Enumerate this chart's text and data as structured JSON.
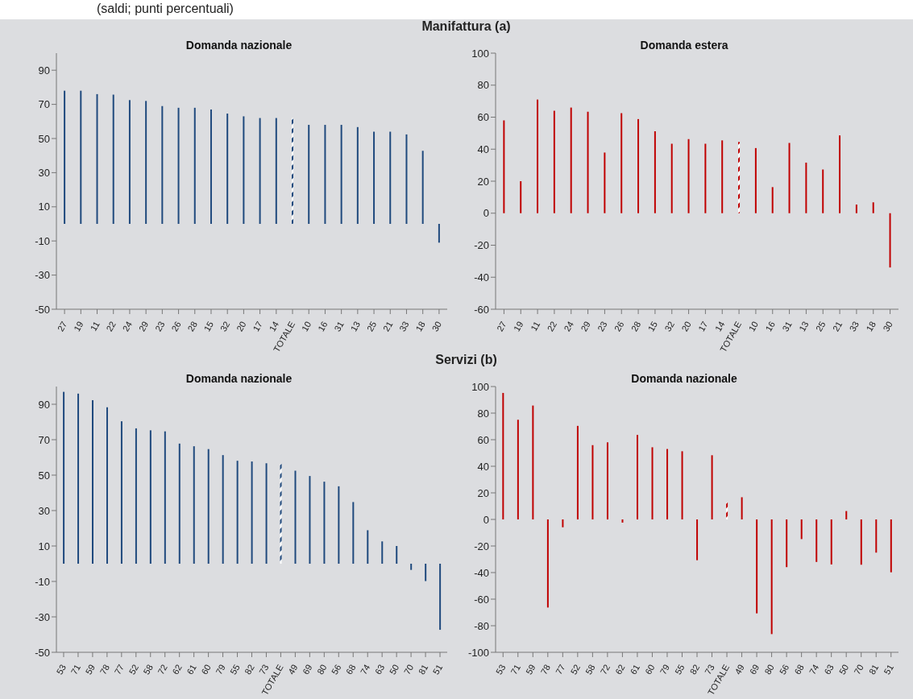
{
  "chart_data": [
    {
      "type": "bar",
      "title": "Domanda nazionale",
      "annotations": [
        "(saldi; punti percentuali)",
        "Manifattura (a)"
      ],
      "categories": [
        "27",
        "19",
        "11",
        "22",
        "24",
        "29",
        "23",
        "26",
        "28",
        "15",
        "32",
        "20",
        "17",
        "14",
        "TOTALE",
        "10",
        "16",
        "31",
        "13",
        "25",
        "21",
        "33",
        "18",
        "30"
      ],
      "values": [
        78,
        78,
        76,
        75.7,
        72.5,
        72,
        69,
        68,
        68,
        67,
        64.6,
        63,
        62,
        62,
        62,
        58,
        58,
        58,
        56.7,
        54,
        54,
        52.4,
        42.8,
        -11
      ],
      "color": "#1f497d",
      "colors": [
        "#1f497d",
        "#1f497d",
        "#1f497d",
        "#1f497d",
        "#1f497d",
        "#1f497d",
        "#1f497d",
        "#1f497d",
        "#1f497d",
        "#1f497d",
        "#1f497d",
        "#1f497d",
        "#1f497d",
        "#1f497d",
        "#ffffff",
        "#1f497d",
        "#1f497d",
        "#1f497d",
        "#1f497d",
        "#1f497d",
        "#1f497d",
        "#1f497d",
        "#1f497d",
        "#1f497d"
      ],
      "ylim": [
        -50,
        100
      ],
      "yticks": [
        -50,
        -30,
        -10,
        10,
        30,
        50,
        70,
        90
      ]
    },
    {
      "type": "bar",
      "title": "Domanda estera",
      "categories": [
        "27",
        "19",
        "11",
        "22",
        "24",
        "29",
        "23",
        "26",
        "28",
        "15",
        "32",
        "20",
        "17",
        "14",
        "TOTALE",
        "10",
        "16",
        "31",
        "13",
        "25",
        "21",
        "33",
        "18",
        "30"
      ],
      "values": [
        58,
        20,
        71,
        64,
        66,
        63.4,
        37.9,
        62.5,
        58.8,
        51.2,
        43.4,
        46.3,
        43.4,
        45.5,
        44.5,
        40.7,
        16.3,
        43.9,
        31.6,
        27.3,
        48.6,
        5.4,
        6.8,
        -33.9
      ],
      "color": "#c00000",
      "colors": [
        "#c00000",
        "#c00000",
        "#c00000",
        "#c00000",
        "#c00000",
        "#c00000",
        "#c00000",
        "#c00000",
        "#c00000",
        "#c00000",
        "#c00000",
        "#c00000",
        "#c00000",
        "#c00000",
        "#ffffff",
        "#c00000",
        "#c00000",
        "#c00000",
        "#c00000",
        "#c00000",
        "#c00000",
        "#c00000",
        "#c00000",
        "#c00000"
      ],
      "ylim": [
        -60,
        100
      ],
      "yticks": [
        -60,
        -40,
        -20,
        0,
        20,
        40,
        60,
        80,
        100
      ]
    },
    {
      "type": "bar",
      "title": "Domanda nazionale",
      "annotations": [
        "Servizi (b)"
      ],
      "categories": [
        "53",
        "71",
        "59",
        "78",
        "77",
        "52",
        "58",
        "72",
        "62",
        "61",
        "60",
        "79",
        "55",
        "82",
        "73",
        "TOTALE",
        "49",
        "69",
        "80",
        "56",
        "68",
        "74",
        "63",
        "50",
        "70",
        "81",
        "51"
      ],
      "values": [
        97,
        96,
        92.3,
        88.3,
        80.4,
        76.4,
        75.3,
        74.7,
        67.8,
        66.3,
        64.7,
        61.3,
        58.1,
        57.7,
        56.7,
        56.3,
        52.5,
        49.5,
        46.3,
        43.7,
        34.8,
        18.9,
        12.6,
        10,
        -3.5,
        -9.8,
        -37.3
      ],
      "color": "#1f497d",
      "colors": [
        "#1f497d",
        "#1f497d",
        "#1f497d",
        "#1f497d",
        "#1f497d",
        "#1f497d",
        "#1f497d",
        "#1f497d",
        "#1f497d",
        "#1f497d",
        "#1f497d",
        "#1f497d",
        "#1f497d",
        "#1f497d",
        "#1f497d",
        "#ffffff",
        "#1f497d",
        "#1f497d",
        "#1f497d",
        "#1f497d",
        "#1f497d",
        "#1f497d",
        "#1f497d",
        "#1f497d",
        "#1f497d",
        "#1f497d",
        "#1f497d"
      ],
      "ylim": [
        -50,
        100
      ],
      "yticks": [
        -50,
        -30,
        -10,
        10,
        30,
        50,
        70,
        90
      ]
    },
    {
      "type": "bar",
      "title": "Domanda nazionale",
      "categories": [
        "53",
        "71",
        "59",
        "78",
        "77",
        "52",
        "58",
        "72",
        "62",
        "61",
        "60",
        "79",
        "55",
        "82",
        "73",
        "TOTALE",
        "49",
        "69",
        "80",
        "56",
        "68",
        "74",
        "63",
        "50",
        "70",
        "81",
        "51"
      ],
      "values": [
        95.2,
        75,
        85.7,
        -66.3,
        -5.9,
        70.4,
        55.9,
        58,
        -2.4,
        63.7,
        54.3,
        53,
        51.3,
        -30.7,
        48.3,
        12.8,
        16.7,
        -70.7,
        -86.3,
        -35.9,
        -14.8,
        -32,
        -33.9,
        6.3,
        -34.1,
        -25,
        -39.8
      ],
      "color": "#c00000",
      "colors": [
        "#c00000",
        "#c00000",
        "#c00000",
        "#c00000",
        "#c00000",
        "#c00000",
        "#c00000",
        "#c00000",
        "#c00000",
        "#c00000",
        "#c00000",
        "#c00000",
        "#c00000",
        "#c00000",
        "#c00000",
        "#ffffff",
        "#c00000",
        "#c00000",
        "#c00000",
        "#c00000",
        "#c00000",
        "#c00000",
        "#c00000",
        "#c00000",
        "#c00000",
        "#c00000",
        "#c00000"
      ],
      "ylim": [
        -100,
        100
      ],
      "yticks": [
        -100,
        -80,
        -60,
        -40,
        -20,
        0,
        20,
        40,
        60,
        80,
        100
      ]
    }
  ]
}
